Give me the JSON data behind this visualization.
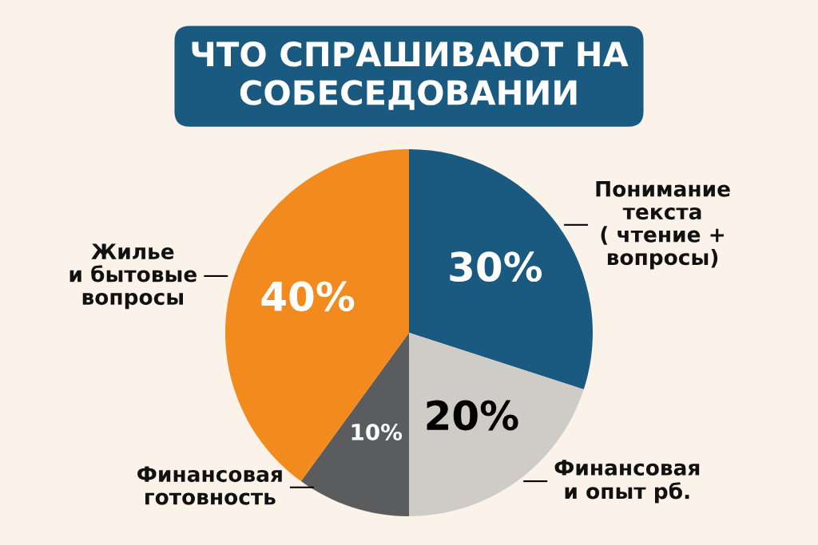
{
  "chart_data": {
    "type": "pie",
    "title": "ЧТО СПРАШИВАЮТ НА\nСОБЕСЕДОВАНИИ",
    "categories": [
      "Понимание\nтекста\n( чтение +\nвопросы)",
      "Финансовая\nи опыт рб.",
      "Финансовая\nготовность",
      "Жилье\nи бытовые\nвопросы"
    ],
    "values": [
      30,
      20,
      10,
      40
    ],
    "colors": [
      "#1b5a80",
      "#cfccc8",
      "#5a5c5e",
      "#f28a1e"
    ],
    "value_labels": [
      "30%",
      "20%",
      "10%",
      "40%"
    ],
    "legend": false
  }
}
